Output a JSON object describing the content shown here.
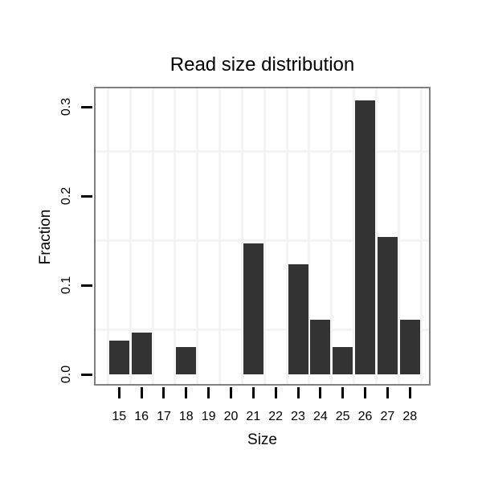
{
  "chart_data": {
    "type": "bar",
    "title": "Read size distribution",
    "xlabel": "Size",
    "ylabel": "Fraction",
    "categories": [
      "15",
      "16",
      "17",
      "18",
      "19",
      "20",
      "21",
      "22",
      "23",
      "24",
      "25",
      "26",
      "27",
      "28"
    ],
    "values": [
      0.038,
      0.047,
      0,
      0.031,
      0,
      0,
      0.147,
      0,
      0.123,
      0.061,
      0.031,
      0.307,
      0.154,
      0.061
    ],
    "yticks": {
      "labels": [
        "0.0",
        "0.1",
        "0.2",
        "0.3"
      ],
      "values": [
        0,
        0.1,
        0.2,
        0.3
      ]
    },
    "minor_y_gridlines": [
      0.05,
      0.15,
      0.25
    ],
    "ylim": [
      -0.013,
      0.323
    ],
    "grid": true,
    "legend": false,
    "colors": {
      "bar": "#333333",
      "panel_border": "#808080",
      "gridline": "#f4f4f4",
      "background": "#ffffff",
      "text": "#000000",
      "tick": "#000000"
    }
  }
}
